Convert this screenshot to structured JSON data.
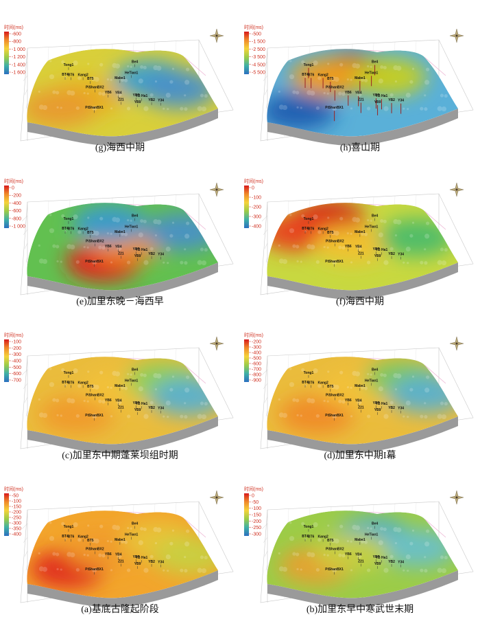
{
  "legend_title": "时间(ms)",
  "wells": [
    {
      "label": "Tong1",
      "u": 0.16,
      "v": 0.1
    },
    {
      "label": "Be4",
      "u": 0.63,
      "v": 0.09
    },
    {
      "label": "BT4",
      "u": 0.15,
      "v": 0.26
    },
    {
      "label": "BT6",
      "u": 0.19,
      "v": 0.27
    },
    {
      "label": "Kang2",
      "u": 0.27,
      "v": 0.28
    },
    {
      "label": "BT5",
      "u": 0.32,
      "v": 0.35
    },
    {
      "label": "HeTian1",
      "u": 0.59,
      "v": 0.28
    },
    {
      "label": "Mabe1",
      "u": 0.51,
      "v": 0.36
    },
    {
      "label": "PiShanBX2",
      "u": 0.35,
      "v": 0.5
    },
    {
      "label": "YB6",
      "u": 0.43,
      "v": 0.6
    },
    {
      "label": "YB4",
      "u": 0.49,
      "v": 0.62
    },
    {
      "label": "YB7",
      "u": 0.59,
      "v": 0.68
    },
    {
      "label": "YB Ha1",
      "u": 0.62,
      "v": 0.7
    },
    {
      "label": "Z21",
      "u": 0.5,
      "v": 0.74
    },
    {
      "label": "YB9",
      "u": 0.59,
      "v": 0.8
    },
    {
      "label": "YB2",
      "u": 0.67,
      "v": 0.78
    },
    {
      "label": "Y34",
      "u": 0.72,
      "v": 0.8
    },
    {
      "label": "PiShanBX1",
      "u": 0.35,
      "v": 0.85
    }
  ],
  "panels": [
    {
      "id": "g",
      "caption": "(g)海西中期",
      "ticks": [
        "-600",
        "-800",
        "-1 000",
        "-1 200",
        "-1 400",
        "-1 600"
      ],
      "zones": [
        {
          "u": 0.3,
          "v": 0.65,
          "color": "#e8b020"
        },
        {
          "u": 0.7,
          "v": 0.4,
          "color": "#3aa0d0"
        },
        {
          "u": 0.85,
          "v": 0.6,
          "color": "#4a90c8"
        },
        {
          "u": 0.15,
          "v": 0.8,
          "color": "#e89a30"
        }
      ],
      "base": "#d9cf3a",
      "wells_shown": true,
      "ribbons": false
    },
    {
      "id": "h",
      "caption": "(h)喜山期",
      "ticks": [
        "-500",
        "-1 500",
        "-2 500",
        "-3 500",
        "-4 500",
        "-5 500"
      ],
      "zones": [
        {
          "u": 0.45,
          "v": 0.25,
          "color": "#d23a1a"
        },
        {
          "u": 0.3,
          "v": 0.3,
          "color": "#f0a020"
        },
        {
          "u": 0.7,
          "v": 0.35,
          "color": "#c8d020"
        },
        {
          "u": 0.15,
          "v": 0.85,
          "color": "#1e5cb0"
        }
      ],
      "base": "#5ab0d8",
      "wells_shown": true,
      "ribbons": true
    },
    {
      "id": "e",
      "caption": "(e)加里东晚－海西早",
      "ticks": [
        "0",
        "-200",
        "-400",
        "-600",
        "-800",
        "-1 000"
      ],
      "zones": [
        {
          "u": 0.4,
          "v": 0.85,
          "color": "#e8201a"
        },
        {
          "u": 0.55,
          "v": 0.55,
          "color": "#f09020"
        },
        {
          "u": 0.45,
          "v": 0.2,
          "color": "#3a9ad0"
        },
        {
          "u": 0.9,
          "v": 0.4,
          "color": "#4a90c8"
        }
      ],
      "base": "#62c050",
      "wells_shown": true,
      "ribbons": false
    },
    {
      "id": "f",
      "caption": "(f)海西中期",
      "ticks": [
        "0",
        "-100",
        "-200",
        "-300",
        "-400"
      ],
      "zones": [
        {
          "u": 0.3,
          "v": 0.1,
          "color": "#d42018"
        },
        {
          "u": 0.1,
          "v": 0.3,
          "color": "#e84020"
        },
        {
          "u": 0.45,
          "v": 0.55,
          "color": "#f2c030"
        },
        {
          "u": 0.85,
          "v": 0.5,
          "color": "#4cbc6a"
        }
      ],
      "base": "#c8d840",
      "wells_shown": true,
      "ribbons": false
    },
    {
      "id": "c",
      "caption": "(c)加里东中期蓬莱坝组时期",
      "ticks": [
        "-100",
        "-200",
        "-300",
        "-400",
        "-500",
        "-600",
        "-700"
      ],
      "zones": [
        {
          "u": 0.25,
          "v": 0.8,
          "color": "#f09a2a"
        },
        {
          "u": 0.5,
          "v": 0.4,
          "color": "#f2c23a"
        },
        {
          "u": 0.8,
          "v": 0.3,
          "color": "#8ad05a"
        },
        {
          "u": 0.9,
          "v": 0.6,
          "color": "#5ab0d0"
        }
      ],
      "base": "#eabc3c",
      "wells_shown": true,
      "ribbons": false
    },
    {
      "id": "d",
      "caption": "(d)加里东中期I幕",
      "ticks": [
        "-200",
        "-300",
        "-400",
        "-500",
        "-600",
        "-700",
        "-800",
        "-900"
      ],
      "zones": [
        {
          "u": 0.25,
          "v": 0.8,
          "color": "#f08a28"
        },
        {
          "u": 0.5,
          "v": 0.4,
          "color": "#f2c23a"
        },
        {
          "u": 0.8,
          "v": 0.25,
          "color": "#7ac860"
        },
        {
          "u": 0.9,
          "v": 0.55,
          "color": "#5ab0d0"
        }
      ],
      "base": "#eabc3c",
      "wells_shown": true,
      "ribbons": false
    },
    {
      "id": "a",
      "caption": "(a)基底古隆起阶段",
      "ticks": [
        "-50",
        "-100",
        "-150",
        "-200",
        "-250",
        "-300",
        "-350",
        "-400"
      ],
      "zones": [
        {
          "u": 0.2,
          "v": 0.8,
          "color": "#e02a1a"
        },
        {
          "u": 0.4,
          "v": 0.5,
          "color": "#f09a2a"
        },
        {
          "u": 0.75,
          "v": 0.4,
          "color": "#e8c43a"
        },
        {
          "u": 0.9,
          "v": 0.7,
          "color": "#c8d040"
        }
      ],
      "base": "#f2a52c",
      "wells_shown": true,
      "ribbons": false
    },
    {
      "id": "b",
      "caption": "(b)加里东早中寒武世末期",
      "ticks": [
        "0",
        "-50",
        "-100",
        "-150",
        "-200",
        "-250",
        "-300"
      ],
      "zones": [
        {
          "u": 0.25,
          "v": 0.75,
          "color": "#e8a030"
        },
        {
          "u": 0.6,
          "v": 0.3,
          "color": "#4aaed0"
        },
        {
          "u": 0.85,
          "v": 0.55,
          "color": "#6ac0c8"
        },
        {
          "u": 0.45,
          "v": 0.55,
          "color": "#c8d040"
        }
      ],
      "base": "#9ccc48",
      "wells_shown": true,
      "ribbons": false
    }
  ]
}
